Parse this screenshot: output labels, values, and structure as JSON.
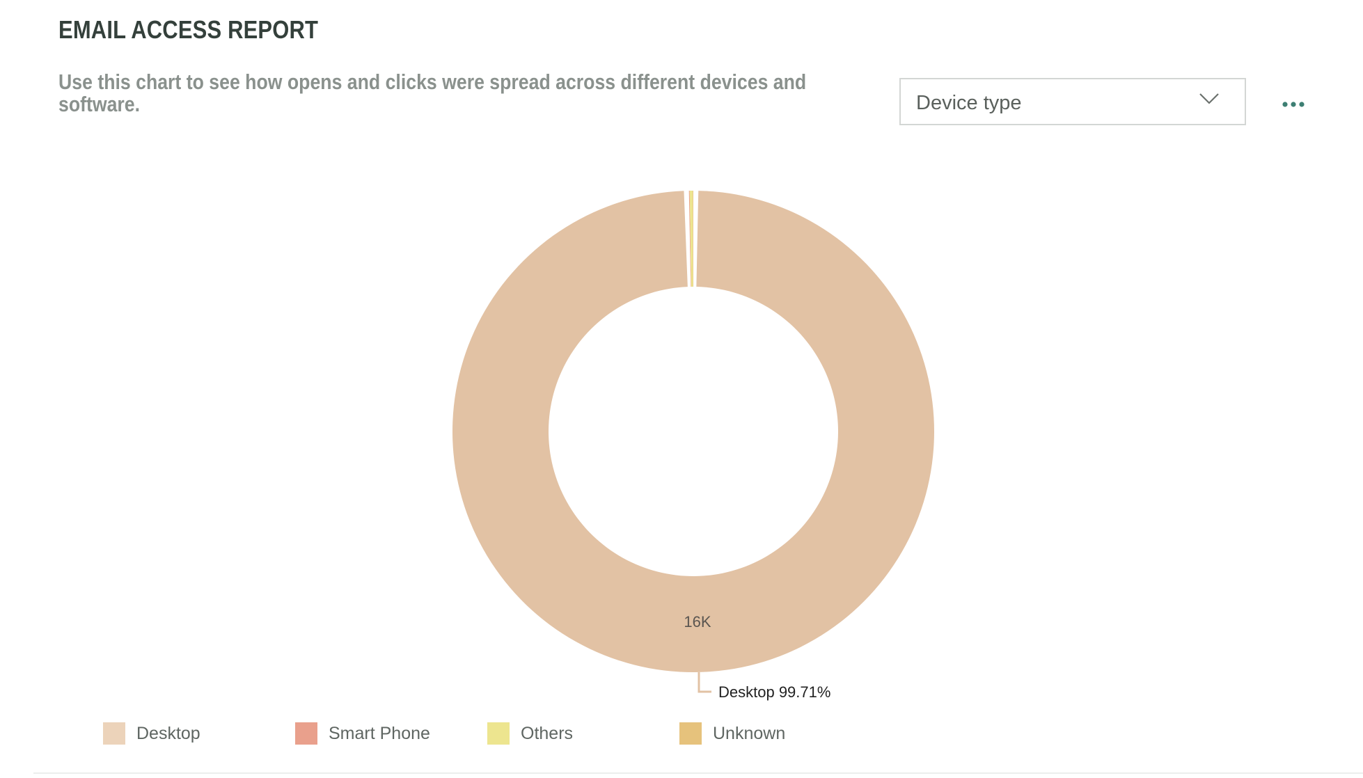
{
  "header": {
    "title": "EMAIL ACCESS REPORT",
    "subtitle": "Use this chart to see how opens and clicks were spread across different devices and software."
  },
  "controls": {
    "dropdown_value": "Device type",
    "dropdown_icon": "chevron-down-icon",
    "more_icon": "more-horizontal-icon",
    "accent_color": "#3d7f73"
  },
  "chart_data": {
    "type": "pie",
    "variant": "donut",
    "categories": [
      "Desktop",
      "Smart Phone",
      "Others",
      "Unknown"
    ],
    "values": [
      99.71,
      0.05,
      0.2,
      0.04
    ],
    "colors": [
      "#e2c2a4",
      "#e9a08c",
      "#ede58f",
      "#e6c27c"
    ],
    "center_slice_label": "16K",
    "callout_label": "Desktop 99.71%",
    "legend_placement": "bottom-left"
  }
}
